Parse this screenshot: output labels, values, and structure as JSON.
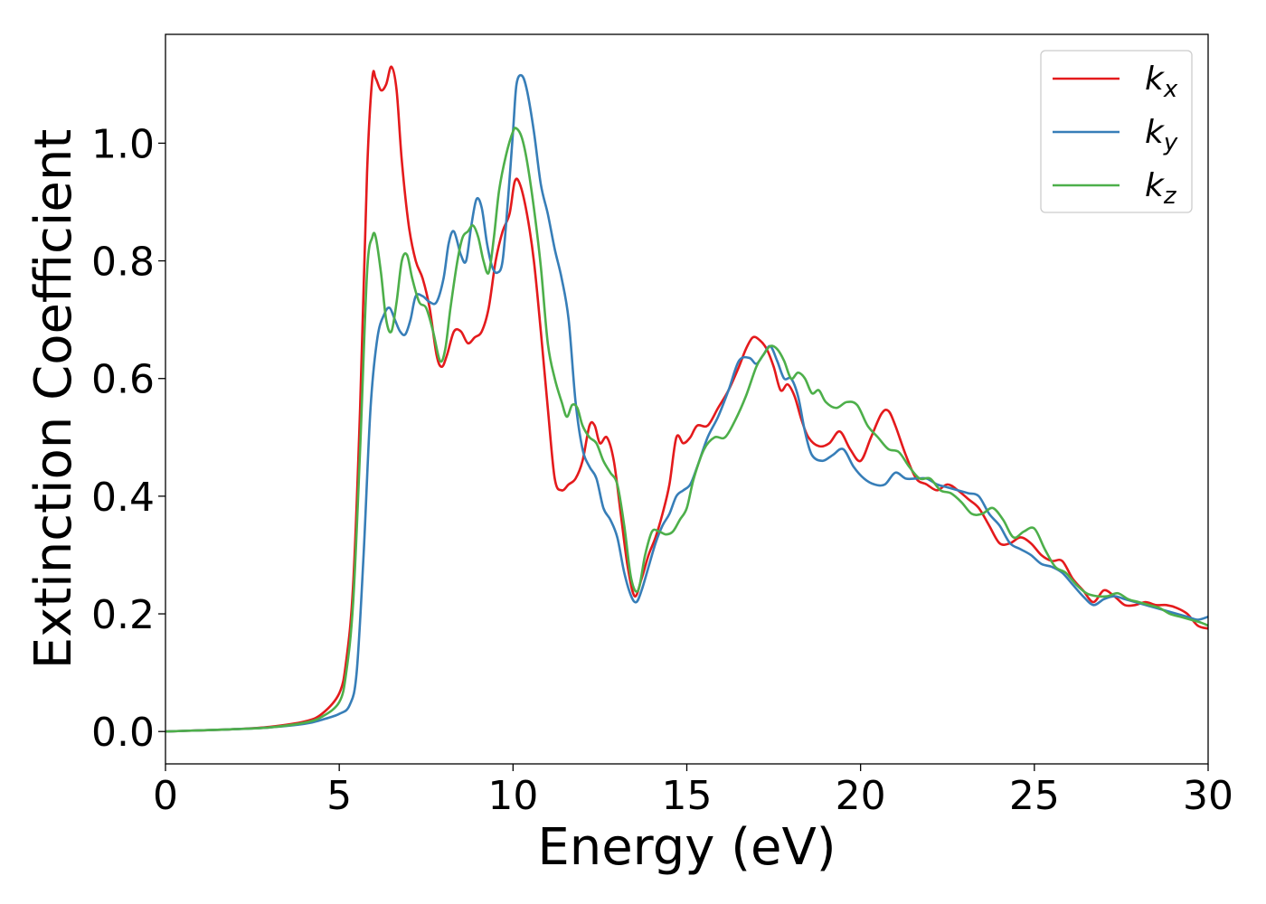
{
  "chart_data": {
    "type": "line",
    "xlabel": "Energy (eV)",
    "ylabel": "Extinction Coefficient",
    "xlim": [
      0,
      30
    ],
    "ylim": [
      -0.055,
      1.185
    ],
    "xticks": [
      0,
      5,
      10,
      15,
      20,
      25,
      30
    ],
    "yticks": [
      0.0,
      0.2,
      0.4,
      0.6,
      0.8,
      1.0
    ],
    "xtick_labels": [
      "0",
      "5",
      "10",
      "15",
      "20",
      "25",
      "30"
    ],
    "ytick_labels": [
      "0.0",
      "0.2",
      "0.4",
      "0.6",
      "0.8",
      "1.0"
    ],
    "grid": false,
    "legend_position": "top-right",
    "series": [
      {
        "name": "k_x",
        "name_base": "k",
        "name_sub": "x",
        "color": "#e41a1c",
        "x": [
          0,
          1,
          2,
          3,
          4,
          4.5,
          5,
          5.2,
          5.4,
          5.6,
          5.8,
          5.95,
          6.05,
          6.2,
          6.35,
          6.5,
          6.65,
          6.8,
          7.0,
          7.2,
          7.4,
          7.6,
          7.8,
          7.95,
          8.1,
          8.3,
          8.5,
          8.7,
          8.9,
          9.1,
          9.3,
          9.5,
          9.7,
          9.9,
          10.05,
          10.2,
          10.4,
          10.6,
          10.8,
          11.0,
          11.2,
          11.4,
          11.6,
          11.8,
          12.0,
          12.2,
          12.35,
          12.5,
          12.7,
          12.9,
          13.1,
          13.3,
          13.5,
          13.7,
          13.9,
          14.1,
          14.3,
          14.5,
          14.7,
          14.9,
          15.1,
          15.3,
          15.6,
          15.9,
          16.2,
          16.5,
          16.7,
          16.9,
          17.1,
          17.3,
          17.5,
          17.7,
          17.9,
          18.1,
          18.3,
          18.5,
          18.8,
          19.1,
          19.4,
          19.7,
          20.0,
          20.3,
          20.6,
          20.8,
          21.0,
          21.3,
          21.6,
          21.9,
          22.2,
          22.5,
          22.8,
          23.1,
          23.4,
          23.7,
          24.0,
          24.3,
          24.6,
          24.9,
          25.2,
          25.5,
          25.8,
          26.1,
          26.4,
          26.7,
          27.0,
          27.3,
          27.6,
          27.9,
          28.2,
          28.5,
          28.8,
          29.1,
          29.4,
          29.7,
          30.0
        ],
        "y": [
          0.0,
          0.002,
          0.004,
          0.008,
          0.017,
          0.03,
          0.065,
          0.12,
          0.25,
          0.55,
          0.95,
          1.11,
          1.11,
          1.09,
          1.1,
          1.13,
          1.09,
          0.97,
          0.86,
          0.8,
          0.77,
          0.72,
          0.64,
          0.62,
          0.64,
          0.68,
          0.68,
          0.66,
          0.67,
          0.68,
          0.72,
          0.8,
          0.85,
          0.88,
          0.935,
          0.93,
          0.88,
          0.8,
          0.68,
          0.55,
          0.43,
          0.41,
          0.42,
          0.43,
          0.46,
          0.52,
          0.52,
          0.49,
          0.5,
          0.46,
          0.37,
          0.28,
          0.23,
          0.26,
          0.3,
          0.33,
          0.37,
          0.42,
          0.5,
          0.49,
          0.5,
          0.52,
          0.52,
          0.55,
          0.58,
          0.62,
          0.65,
          0.67,
          0.665,
          0.65,
          0.62,
          0.58,
          0.59,
          0.57,
          0.53,
          0.5,
          0.485,
          0.49,
          0.51,
          0.48,
          0.46,
          0.5,
          0.54,
          0.545,
          0.52,
          0.47,
          0.43,
          0.42,
          0.41,
          0.42,
          0.41,
          0.395,
          0.38,
          0.35,
          0.32,
          0.32,
          0.33,
          0.32,
          0.3,
          0.29,
          0.29,
          0.26,
          0.24,
          0.22,
          0.24,
          0.23,
          0.215,
          0.215,
          0.22,
          0.215,
          0.215,
          0.21,
          0.2,
          0.18,
          0.175
        ]
      },
      {
        "name": "k_y",
        "name_base": "k",
        "name_sub": "y",
        "color": "#377eb8",
        "x": [
          0,
          1,
          2,
          3,
          4,
          4.5,
          5,
          5.3,
          5.5,
          5.7,
          5.9,
          6.1,
          6.3,
          6.45,
          6.6,
          6.75,
          6.9,
          7.05,
          7.2,
          7.4,
          7.6,
          7.8,
          8.0,
          8.15,
          8.3,
          8.5,
          8.65,
          8.8,
          8.95,
          9.1,
          9.25,
          9.4,
          9.55,
          9.7,
          9.85,
          10.0,
          10.1,
          10.25,
          10.4,
          10.6,
          10.8,
          11.0,
          11.2,
          11.4,
          11.6,
          11.8,
          12.0,
          12.2,
          12.4,
          12.6,
          12.8,
          13.0,
          13.2,
          13.4,
          13.55,
          13.7,
          13.9,
          14.1,
          14.3,
          14.5,
          14.7,
          14.9,
          15.1,
          15.3,
          15.6,
          15.9,
          16.2,
          16.5,
          16.8,
          17.0,
          17.2,
          17.4,
          17.6,
          17.8,
          18.0,
          18.2,
          18.4,
          18.6,
          18.9,
          19.2,
          19.5,
          19.8,
          20.1,
          20.4,
          20.7,
          21.0,
          21.3,
          21.6,
          21.9,
          22.2,
          22.5,
          22.8,
          23.1,
          23.4,
          23.7,
          24.0,
          24.3,
          24.6,
          24.9,
          25.2,
          25.5,
          25.8,
          26.1,
          26.4,
          26.7,
          27.0,
          27.3,
          27.6,
          27.9,
          28.2,
          28.5,
          28.8,
          29.1,
          29.4,
          29.7,
          30.0
        ],
        "y": [
          0.0,
          0.002,
          0.004,
          0.007,
          0.013,
          0.02,
          0.03,
          0.045,
          0.1,
          0.3,
          0.55,
          0.67,
          0.71,
          0.72,
          0.7,
          0.68,
          0.675,
          0.7,
          0.74,
          0.74,
          0.73,
          0.73,
          0.77,
          0.83,
          0.85,
          0.81,
          0.8,
          0.86,
          0.905,
          0.89,
          0.83,
          0.79,
          0.78,
          0.8,
          0.9,
          1.02,
          1.1,
          1.115,
          1.09,
          1.02,
          0.93,
          0.88,
          0.82,
          0.77,
          0.7,
          0.56,
          0.48,
          0.45,
          0.43,
          0.38,
          0.36,
          0.33,
          0.27,
          0.23,
          0.22,
          0.24,
          0.28,
          0.32,
          0.35,
          0.37,
          0.4,
          0.41,
          0.42,
          0.45,
          0.5,
          0.535,
          0.58,
          0.63,
          0.635,
          0.625,
          0.64,
          0.655,
          0.63,
          0.6,
          0.6,
          0.57,
          0.51,
          0.47,
          0.46,
          0.47,
          0.48,
          0.45,
          0.43,
          0.42,
          0.42,
          0.44,
          0.43,
          0.43,
          0.43,
          0.42,
          0.415,
          0.41,
          0.405,
          0.4,
          0.37,
          0.35,
          0.32,
          0.31,
          0.3,
          0.285,
          0.28,
          0.27,
          0.25,
          0.23,
          0.215,
          0.225,
          0.23,
          0.225,
          0.22,
          0.215,
          0.21,
          0.205,
          0.2,
          0.195,
          0.19,
          0.195
        ]
      },
      {
        "name": "k_z",
        "name_base": "k",
        "name_sub": "z",
        "color": "#4daf4a",
        "x": [
          0,
          1,
          2,
          3,
          4,
          4.5,
          5,
          5.2,
          5.4,
          5.6,
          5.8,
          5.95,
          6.05,
          6.2,
          6.35,
          6.5,
          6.65,
          6.8,
          6.95,
          7.1,
          7.3,
          7.5,
          7.7,
          7.9,
          8.05,
          8.2,
          8.4,
          8.55,
          8.7,
          8.85,
          9.0,
          9.15,
          9.3,
          9.45,
          9.6,
          9.8,
          10.0,
          10.1,
          10.25,
          10.4,
          10.6,
          10.8,
          11.0,
          11.2,
          11.4,
          11.55,
          11.7,
          11.85,
          12.0,
          12.2,
          12.4,
          12.6,
          12.8,
          13.0,
          13.2,
          13.4,
          13.6,
          13.8,
          14.0,
          14.2,
          14.4,
          14.6,
          14.8,
          15.0,
          15.2,
          15.5,
          15.8,
          16.1,
          16.4,
          16.7,
          17.0,
          17.2,
          17.4,
          17.6,
          17.8,
          18.0,
          18.2,
          18.4,
          18.6,
          18.8,
          19.0,
          19.3,
          19.6,
          19.9,
          20.2,
          20.5,
          20.8,
          21.1,
          21.4,
          21.7,
          22.0,
          22.3,
          22.6,
          22.9,
          23.2,
          23.5,
          23.8,
          24.1,
          24.4,
          24.7,
          25.0,
          25.3,
          25.6,
          25.9,
          26.2,
          26.5,
          26.8,
          27.1,
          27.4,
          27.7,
          28.0,
          28.3,
          28.6,
          28.9,
          29.2,
          29.5,
          29.8,
          30.0
        ],
        "y": [
          0.0,
          0.002,
          0.004,
          0.007,
          0.015,
          0.025,
          0.05,
          0.1,
          0.22,
          0.48,
          0.78,
          0.84,
          0.84,
          0.78,
          0.7,
          0.68,
          0.73,
          0.8,
          0.81,
          0.77,
          0.73,
          0.72,
          0.68,
          0.63,
          0.65,
          0.72,
          0.8,
          0.84,
          0.85,
          0.86,
          0.84,
          0.8,
          0.78,
          0.84,
          0.92,
          0.98,
          1.02,
          1.025,
          1.01,
          0.97,
          0.89,
          0.79,
          0.66,
          0.6,
          0.56,
          0.535,
          0.555,
          0.55,
          0.52,
          0.5,
          0.49,
          0.46,
          0.44,
          0.42,
          0.35,
          0.26,
          0.24,
          0.3,
          0.34,
          0.34,
          0.335,
          0.34,
          0.36,
          0.38,
          0.43,
          0.48,
          0.5,
          0.5,
          0.53,
          0.57,
          0.62,
          0.64,
          0.655,
          0.65,
          0.63,
          0.6,
          0.61,
          0.6,
          0.575,
          0.58,
          0.56,
          0.55,
          0.56,
          0.555,
          0.52,
          0.5,
          0.48,
          0.475,
          0.45,
          0.43,
          0.43,
          0.41,
          0.405,
          0.39,
          0.37,
          0.37,
          0.38,
          0.36,
          0.33,
          0.34,
          0.345,
          0.31,
          0.28,
          0.27,
          0.25,
          0.235,
          0.23,
          0.23,
          0.235,
          0.225,
          0.22,
          0.215,
          0.21,
          0.2,
          0.195,
          0.19,
          0.185,
          0.18
        ]
      }
    ]
  }
}
